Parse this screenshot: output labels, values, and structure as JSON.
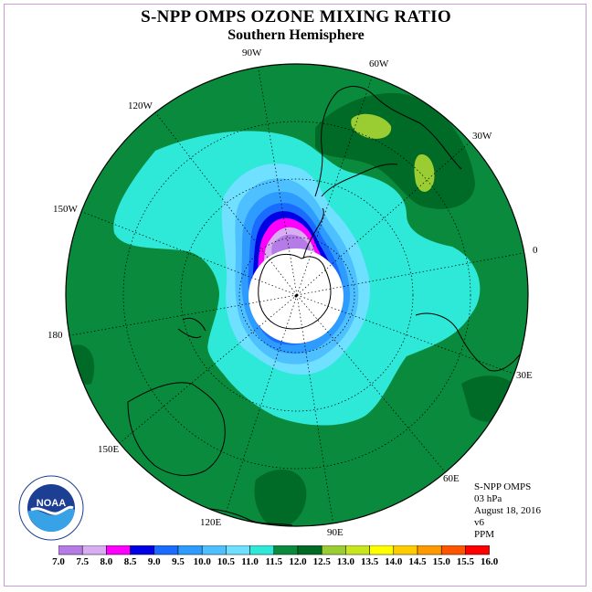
{
  "title": "S-NPP OMPS OZONE MIXING RATIO",
  "subtitle": "Southern Hemisphere",
  "longitude_labels": [
    "90W",
    "60W",
    "30W",
    "0",
    "30E",
    "60E",
    "90E",
    "120E",
    "150E",
    "180",
    "150W",
    "120W"
  ],
  "info": {
    "instrument": "S-NPP OMPS",
    "level": "03 hPa",
    "date": "August 18, 2016",
    "version": "v6",
    "units": "PPM"
  },
  "colorbar": {
    "tick_labels": [
      "7.0",
      "7.5",
      "8.0",
      "8.5",
      "9.0",
      "9.5",
      "10.0",
      "10.5",
      "11.0",
      "11.5",
      "12.0",
      "12.5",
      "13.0",
      "13.5",
      "14.0",
      "14.5",
      "15.0",
      "15.5",
      "16.0"
    ],
    "colors": [
      "#b57be6",
      "#d7aef2",
      "#ff00ff",
      "#0000e6",
      "#1a6bff",
      "#2e9cff",
      "#4ebfff",
      "#6fe0ff",
      "#2ee8d8",
      "#0a8a3c",
      "#006b26",
      "#9acd32",
      "#c8e61e",
      "#ffff00",
      "#ffcc00",
      "#ff9900",
      "#ff5500",
      "#ff0000",
      "#8b5a3c"
    ]
  },
  "logo_text": "NOAA"
}
